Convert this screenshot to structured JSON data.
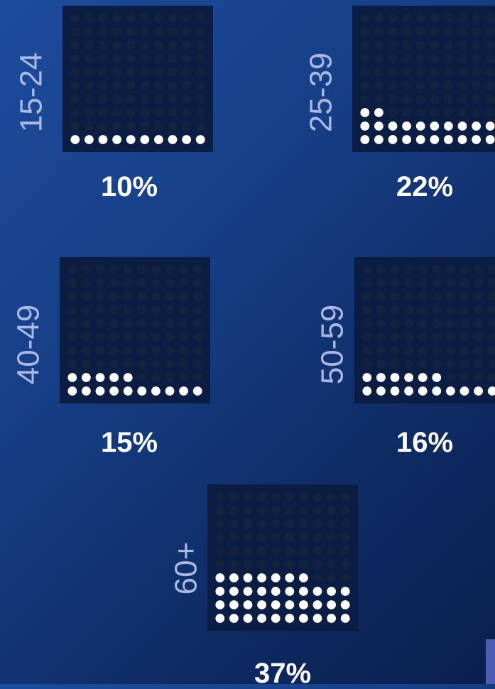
{
  "chart_data": {
    "type": "waffle",
    "grid": {
      "rows": 10,
      "cols": 10
    },
    "groups": [
      {
        "label": "15-24",
        "value": 10,
        "value_label": "10%"
      },
      {
        "label": "25-39",
        "value": 22,
        "value_label": "22%"
      },
      {
        "label": "40-49",
        "value": 15,
        "value_label": "15%"
      },
      {
        "label": "50-59",
        "value": 16,
        "value_label": "16%"
      },
      {
        "label": "60+",
        "value": 37,
        "value_label": "37%"
      }
    ],
    "colors": {
      "filled_dot": "#ffffff",
      "empty_dot": "#13233f",
      "panel_bg": "#0b1d42",
      "label": "#a9b9e4"
    }
  }
}
